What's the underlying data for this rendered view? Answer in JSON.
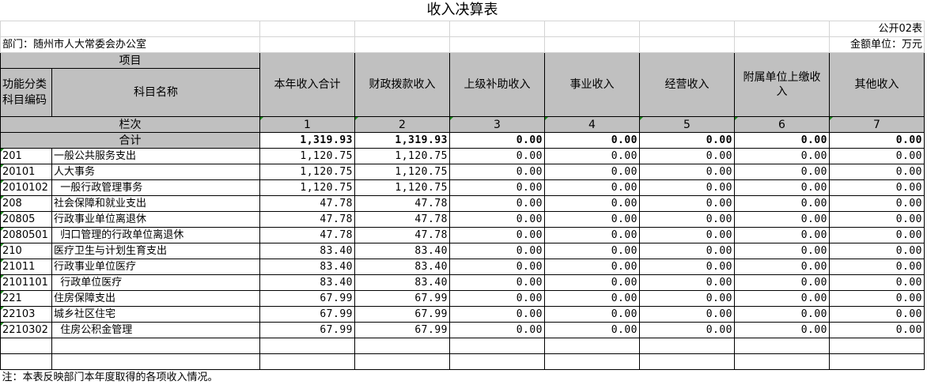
{
  "title": "收入决算表",
  "form_no": "公开02表",
  "department": "部门：随州市人大常委会办公室",
  "unit": "金额单位：万元",
  "header": {
    "item": "项目",
    "code": "功能分类科目编码",
    "name": "科目名称",
    "columns": [
      "本年收入合计",
      "财政拨款收入",
      "上级补助收入",
      "事业收入",
      "经营收入",
      "附属单位上缴收入",
      "其他收入"
    ],
    "row_index_label": "栏次",
    "row_index": [
      "1",
      "2",
      "3",
      "4",
      "5",
      "6",
      "7"
    ]
  },
  "total": {
    "label": "合计",
    "values": [
      "1,319.93",
      "1,319.93",
      "0.00",
      "0.00",
      "0.00",
      "0.00",
      "0.00"
    ]
  },
  "rows": [
    {
      "code": "201",
      "name": "一般公共服务支出",
      "values": [
        "1,120.75",
        "1,120.75",
        "0.00",
        "0.00",
        "0.00",
        "0.00",
        "0.00"
      ]
    },
    {
      "code": "20101",
      "name": "人大事务",
      "values": [
        "1,120.75",
        "1,120.75",
        "0.00",
        "0.00",
        "0.00",
        "0.00",
        "0.00"
      ]
    },
    {
      "code": "2010102",
      "name": "  一般行政管理事务",
      "values": [
        "1,120.75",
        "1,120.75",
        "0.00",
        "0.00",
        "0.00",
        "0.00",
        "0.00"
      ]
    },
    {
      "code": "208",
      "name": "社会保障和就业支出",
      "values": [
        "47.78",
        "47.78",
        "0.00",
        "0.00",
        "0.00",
        "0.00",
        "0.00"
      ]
    },
    {
      "code": "20805",
      "name": "行政事业单位离退休",
      "values": [
        "47.78",
        "47.78",
        "0.00",
        "0.00",
        "0.00",
        "0.00",
        "0.00"
      ]
    },
    {
      "code": "2080501",
      "name": "  归口管理的行政单位离退休",
      "values": [
        "47.78",
        "47.78",
        "0.00",
        "0.00",
        "0.00",
        "0.00",
        "0.00"
      ]
    },
    {
      "code": "210",
      "name": "医疗卫生与计划生育支出",
      "values": [
        "83.40",
        "83.40",
        "0.00",
        "0.00",
        "0.00",
        "0.00",
        "0.00"
      ]
    },
    {
      "code": "21011",
      "name": "行政事业单位医疗",
      "values": [
        "83.40",
        "83.40",
        "0.00",
        "0.00",
        "0.00",
        "0.00",
        "0.00"
      ]
    },
    {
      "code": "2101101",
      "name": "  行政单位医疗",
      "values": [
        "83.40",
        "83.40",
        "0.00",
        "0.00",
        "0.00",
        "0.00",
        "0.00"
      ]
    },
    {
      "code": "221",
      "name": "住房保障支出",
      "values": [
        "67.99",
        "67.99",
        "0.00",
        "0.00",
        "0.00",
        "0.00",
        "0.00"
      ]
    },
    {
      "code": "22103",
      "name": "城乡社区住宅",
      "values": [
        "67.99",
        "67.99",
        "0.00",
        "0.00",
        "0.00",
        "0.00",
        "0.00"
      ]
    },
    {
      "code": "2210302",
      "name": "  住房公积金管理",
      "values": [
        "67.99",
        "67.99",
        "0.00",
        "0.00",
        "0.00",
        "0.00",
        "0.00"
      ]
    }
  ],
  "note": "注：本表反映部门本年度取得的各项收入情况。"
}
